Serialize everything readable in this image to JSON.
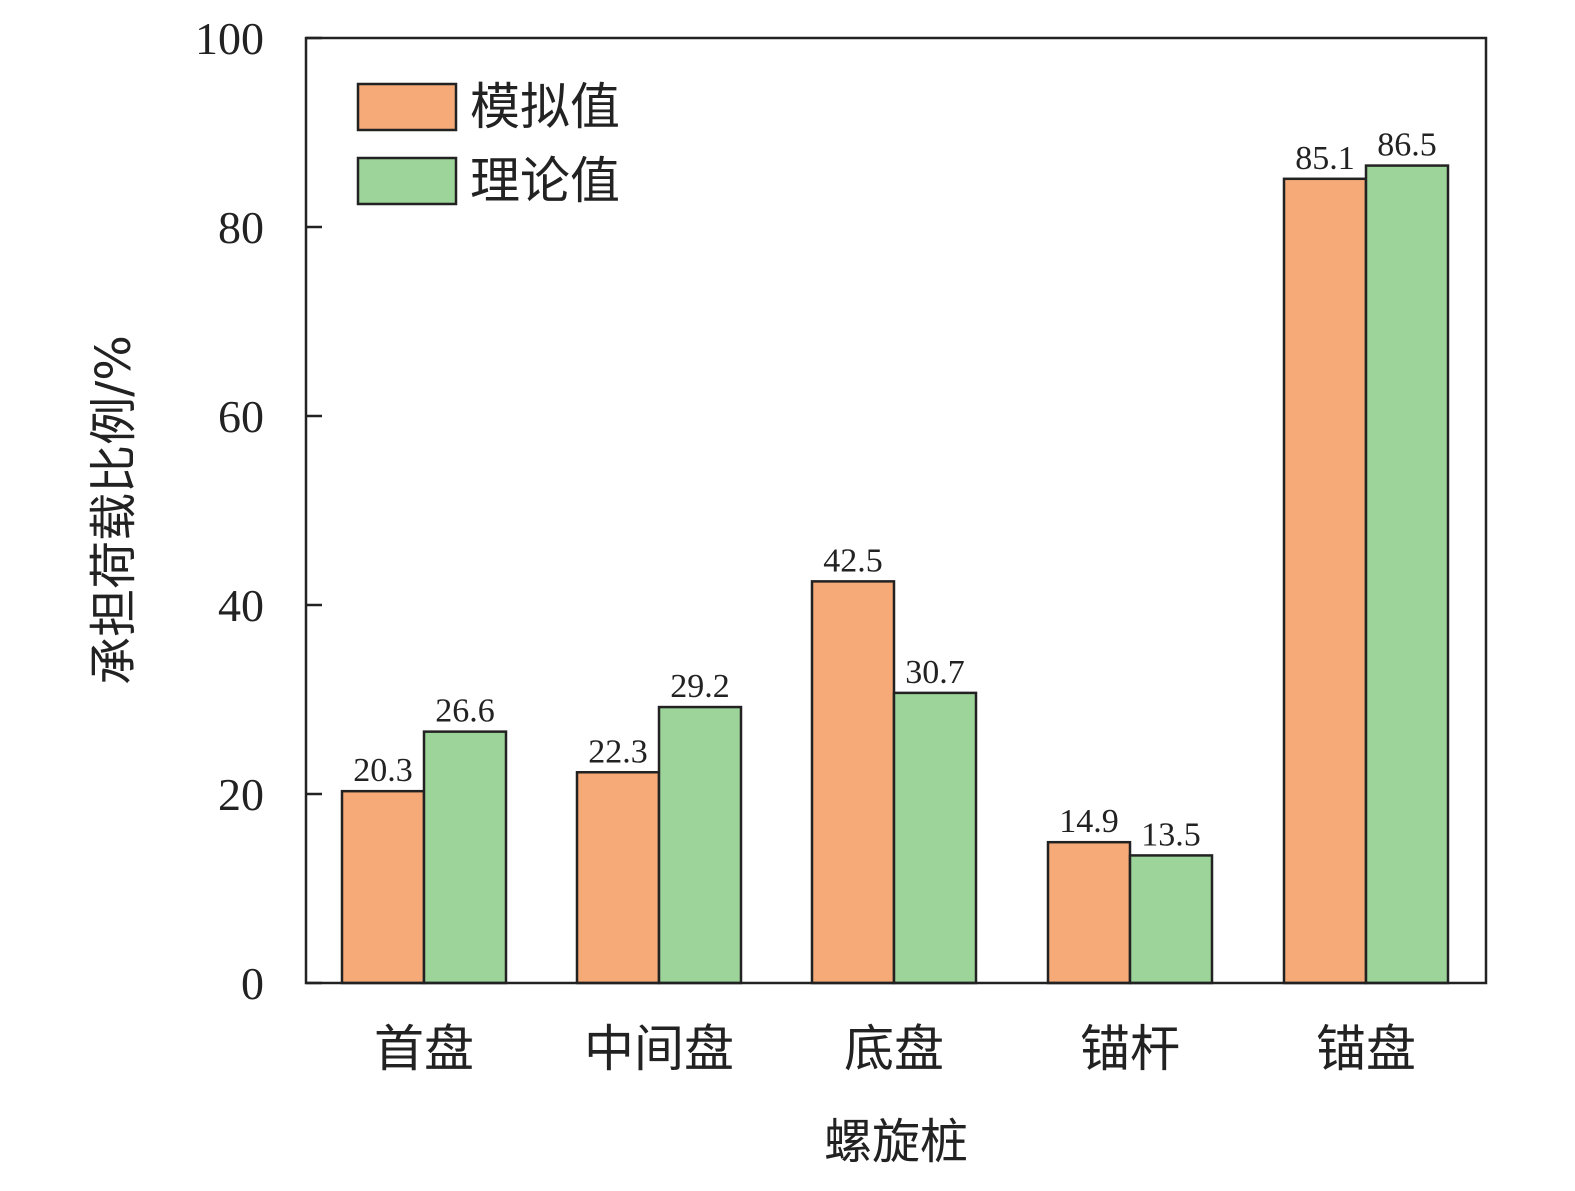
{
  "chart_data": {
    "type": "bar",
    "categories": [
      "首盘",
      "中间盘",
      "底盘",
      "锚杆",
      "锚盘"
    ],
    "series": [
      {
        "name": "模拟值",
        "values": [
          20.3,
          22.3,
          42.5,
          14.9,
          85.1
        ],
        "color": "#F5AA78"
      },
      {
        "name": "理论值",
        "values": [
          26.6,
          29.2,
          30.7,
          13.5,
          86.5
        ],
        "color": "#9DD49A"
      }
    ],
    "xlabel": "螺旋桩",
    "ylabel": "承担荷载比例/%",
    "ylim": [
      0,
      100
    ],
    "yticks": [
      0,
      20,
      40,
      60,
      80,
      100
    ],
    "legend_position": "top-left",
    "grid": false
  }
}
